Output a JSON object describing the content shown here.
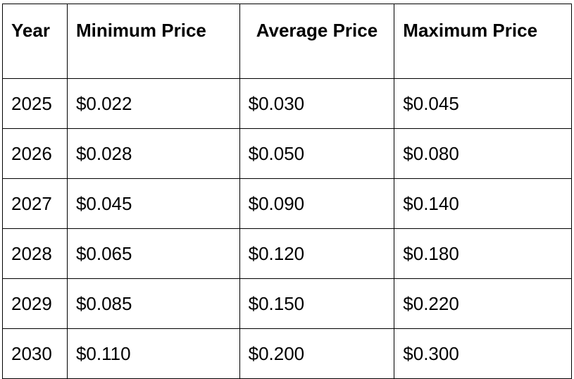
{
  "table": {
    "headers": [
      "Year",
      "Minimum Price",
      "Average Price",
      "Maximum Price"
    ],
    "rows": [
      [
        "2025",
        "$0.022",
        "$0.030",
        "$0.045"
      ],
      [
        "2026",
        "$0.028",
        "$0.050",
        "$0.080"
      ],
      [
        "2027",
        "$0.045",
        "$0.090",
        "$0.140"
      ],
      [
        "2028",
        "$0.065",
        "$0.120",
        "$0.180"
      ],
      [
        "2029",
        "$0.085",
        "$0.150",
        "$0.220"
      ],
      [
        "2030",
        "$0.110",
        "$0.200",
        "$0.300"
      ]
    ]
  }
}
